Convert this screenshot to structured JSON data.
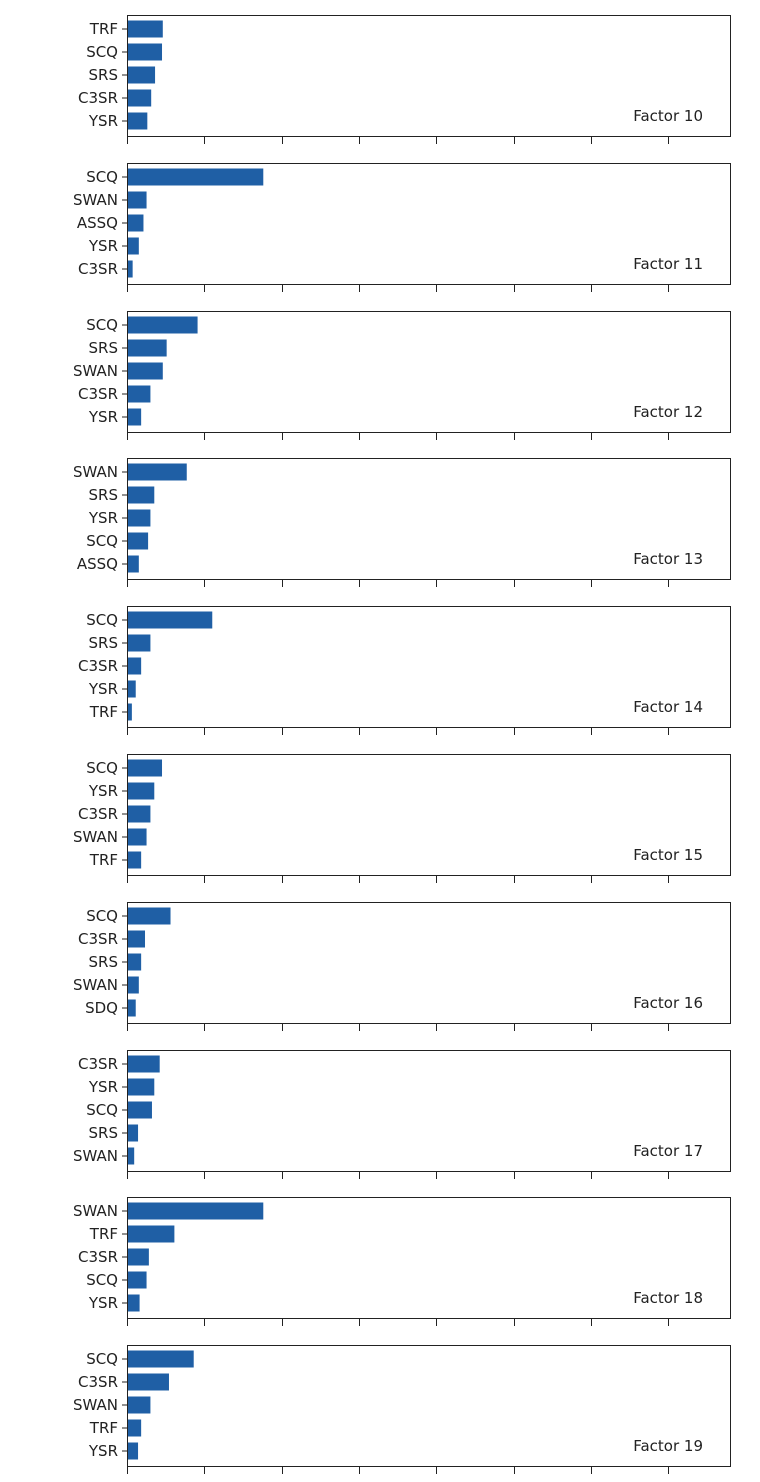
{
  "colors": {
    "bar": "#1f5fa5",
    "axes": "#222222",
    "background": "#ffffff"
  },
  "chart_data": [
    {
      "type": "bar",
      "orientation": "horizontal",
      "annotation": "Factor 10",
      "categories": [
        "TRF",
        "SCQ",
        "SRS",
        "C3SR",
        "YSR"
      ],
      "values": [
        0.45,
        0.44,
        0.35,
        0.3,
        0.25
      ],
      "xlim": [
        0,
        7.8
      ],
      "xticks": [
        0,
        1,
        2,
        3,
        4,
        5,
        6,
        7
      ],
      "tick_labels_shown": false
    },
    {
      "type": "bar",
      "orientation": "horizontal",
      "annotation": "Factor 11",
      "categories": [
        "SCQ",
        "SWAN",
        "ASSQ",
        "YSR",
        "C3SR"
      ],
      "values": [
        1.75,
        0.24,
        0.2,
        0.14,
        0.06
      ],
      "xlim": [
        0,
        7.8
      ],
      "xticks": [
        0,
        1,
        2,
        3,
        4,
        5,
        6,
        7
      ],
      "tick_labels_shown": false
    },
    {
      "type": "bar",
      "orientation": "horizontal",
      "annotation": "Factor 12",
      "categories": [
        "SCQ",
        "SRS",
        "SWAN",
        "C3SR",
        "YSR"
      ],
      "values": [
        0.9,
        0.5,
        0.45,
        0.29,
        0.17
      ],
      "xlim": [
        0,
        7.8
      ],
      "xticks": [
        0,
        1,
        2,
        3,
        4,
        5,
        6,
        7
      ],
      "tick_labels_shown": false
    },
    {
      "type": "bar",
      "orientation": "horizontal",
      "annotation": "Factor 13",
      "categories": [
        "SWAN",
        "SRS",
        "YSR",
        "SCQ",
        "ASSQ"
      ],
      "values": [
        0.76,
        0.34,
        0.29,
        0.26,
        0.14
      ],
      "xlim": [
        0,
        7.8
      ],
      "xticks": [
        0,
        1,
        2,
        3,
        4,
        5,
        6,
        7
      ],
      "tick_labels_shown": false
    },
    {
      "type": "bar",
      "orientation": "horizontal",
      "annotation": "Factor 14",
      "categories": [
        "SCQ",
        "SRS",
        "C3SR",
        "YSR",
        "TRF"
      ],
      "values": [
        1.09,
        0.29,
        0.17,
        0.1,
        0.05
      ],
      "xlim": [
        0,
        7.8
      ],
      "xticks": [
        0,
        1,
        2,
        3,
        4,
        5,
        6,
        7
      ],
      "tick_labels_shown": false
    },
    {
      "type": "bar",
      "orientation": "horizontal",
      "annotation": "Factor 15",
      "categories": [
        "SCQ",
        "YSR",
        "C3SR",
        "SWAN",
        "TRF"
      ],
      "values": [
        0.44,
        0.34,
        0.29,
        0.24,
        0.17
      ],
      "xlim": [
        0,
        7.8
      ],
      "xticks": [
        0,
        1,
        2,
        3,
        4,
        5,
        6,
        7
      ],
      "tick_labels_shown": false
    },
    {
      "type": "bar",
      "orientation": "horizontal",
      "annotation": "Factor 16",
      "categories": [
        "SCQ",
        "C3SR",
        "SRS",
        "SWAN",
        "SDQ"
      ],
      "values": [
        0.55,
        0.22,
        0.17,
        0.14,
        0.1
      ],
      "xlim": [
        0,
        7.8
      ],
      "xticks": [
        0,
        1,
        2,
        3,
        4,
        5,
        6,
        7
      ],
      "tick_labels_shown": false
    },
    {
      "type": "bar",
      "orientation": "horizontal",
      "annotation": "Factor 17",
      "categories": [
        "C3SR",
        "YSR",
        "SCQ",
        "SRS",
        "SWAN"
      ],
      "values": [
        0.41,
        0.34,
        0.31,
        0.13,
        0.08
      ],
      "xlim": [
        0,
        7.8
      ],
      "xticks": [
        0,
        1,
        2,
        3,
        4,
        5,
        6,
        7
      ],
      "tick_labels_shown": false
    },
    {
      "type": "bar",
      "orientation": "horizontal",
      "annotation": "Factor 18",
      "categories": [
        "SWAN",
        "TRF",
        "C3SR",
        "SCQ",
        "YSR"
      ],
      "values": [
        1.75,
        0.6,
        0.27,
        0.24,
        0.15
      ],
      "xlim": [
        0,
        7.8
      ],
      "xticks": [
        0,
        1,
        2,
        3,
        4,
        5,
        6,
        7
      ],
      "tick_labels_shown": false
    },
    {
      "type": "bar",
      "orientation": "horizontal",
      "annotation": "Factor 19",
      "categories": [
        "SCQ",
        "C3SR",
        "SWAN",
        "TRF",
        "YSR"
      ],
      "values": [
        0.85,
        0.53,
        0.29,
        0.17,
        0.13
      ],
      "xlim": [
        0,
        7.8
      ],
      "xticks": [
        0,
        1,
        2,
        3,
        4,
        5,
        6,
        7
      ],
      "tick_labels_shown": false
    }
  ]
}
